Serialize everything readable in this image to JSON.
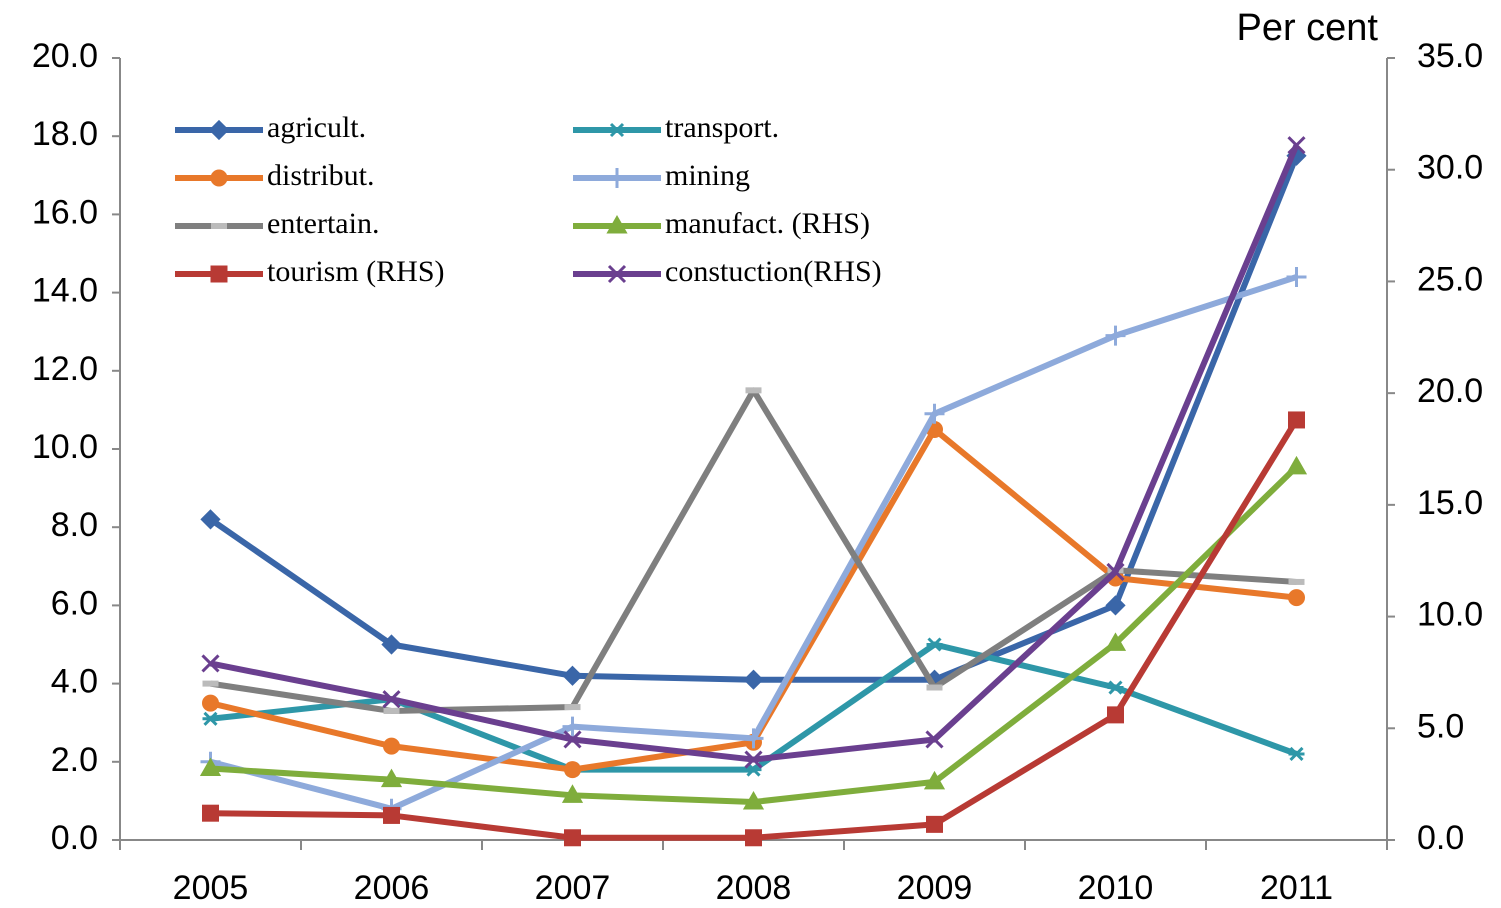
{
  "chart_data": {
    "type": "line",
    "y_label": "Per cent",
    "categories": [
      "2005",
      "2006",
      "2007",
      "2008",
      "2009",
      "2010",
      "2011"
    ],
    "ylim": [
      0,
      20
    ],
    "yticks": [
      {
        "value": 0,
        "label": "0.0"
      },
      {
        "value": 2,
        "label": "2.0"
      },
      {
        "value": 4,
        "label": "4.0"
      },
      {
        "value": 6,
        "label": "6.0"
      },
      {
        "value": 8,
        "label": "8.0"
      },
      {
        "value": 10,
        "label": "10.0"
      },
      {
        "value": 12,
        "label": "12.0"
      },
      {
        "value": 14,
        "label": "14.0"
      },
      {
        "value": 16,
        "label": "16.0"
      },
      {
        "value": 18,
        "label": "18.0"
      },
      {
        "value": 20,
        "label": "20.0"
      }
    ],
    "y2lim": [
      0,
      35
    ],
    "y2ticks": [
      {
        "value": 0,
        "label": "0.0"
      },
      {
        "value": 5,
        "label": "5.0"
      },
      {
        "value": 10,
        "label": "10.0"
      },
      {
        "value": 15,
        "label": "15.0"
      },
      {
        "value": 20,
        "label": "20.0"
      },
      {
        "value": 25,
        "label": "25.0"
      },
      {
        "value": 30,
        "label": "30.0"
      },
      {
        "value": 35,
        "label": "35.0"
      }
    ],
    "series": [
      {
        "name": "agricult.",
        "color": "#3a66a8",
        "marker": "diamond",
        "values": [
          8.2,
          5.0,
          4.2,
          4.1,
          4.1,
          6.0,
          17.5
        ]
      },
      {
        "name": "transport.",
        "color": "#2e97a8",
        "marker": "star",
        "values": [
          3.1,
          3.6,
          1.8,
          1.8,
          5.0,
          3.9,
          2.2
        ]
      },
      {
        "name": "distribut.",
        "color": "#e8782a",
        "marker": "circle",
        "values": [
          3.5,
          2.4,
          1.8,
          2.5,
          10.5,
          6.7,
          6.2
        ]
      },
      {
        "name": "mining",
        "color": "#8eaadb",
        "marker": "plus",
        "values": [
          2.0,
          0.8,
          2.9,
          2.6,
          10.9,
          12.9,
          14.4
        ]
      },
      {
        "name": "entertain.",
        "color": "#7f7f7f",
        "marker": "dash",
        "values": [
          4.0,
          3.3,
          3.4,
          11.5,
          3.9,
          6.9,
          6.6
        ]
      },
      {
        "name": "manufact. (RHS)",
        "color": "#7fad3c",
        "marker": "triangle",
        "axis": "y2",
        "values": [
          3.2,
          2.7,
          2.0,
          1.7,
          2.6,
          8.8,
          16.7
        ]
      },
      {
        "name": "tourism (RHS)",
        "color": "#b83a34",
        "marker": "square",
        "axis": "y2",
        "values": [
          1.2,
          1.1,
          0.1,
          0.1,
          0.7,
          5.6,
          18.8
        ]
      },
      {
        "name": "constuction(RHS)",
        "color": "#6a3f8f",
        "marker": "x",
        "axis": "y2",
        "values": [
          7.9,
          6.3,
          4.5,
          3.6,
          4.5,
          12.0,
          31.1
        ]
      }
    ]
  }
}
